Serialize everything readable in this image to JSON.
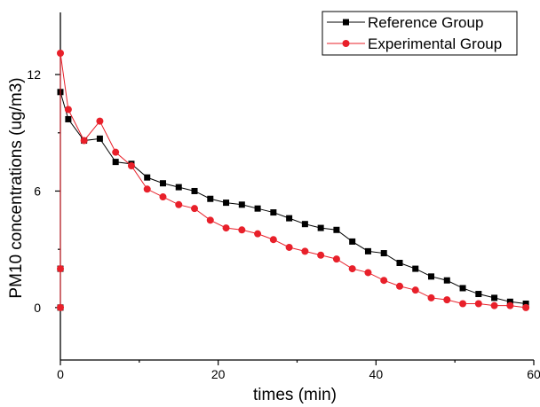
{
  "chart_data": {
    "type": "line",
    "title": "",
    "xlabel": "times (min)",
    "ylabel": "PM10 concentrations (ug/m3)",
    "xlim": [
      0,
      60
    ],
    "ylim": [
      -2.7,
      15.2
    ],
    "xticks": [
      0,
      20,
      40,
      60
    ],
    "xtick_labels": [
      "0",
      "20",
      "40",
      "60"
    ],
    "yticks": [
      0,
      6,
      12
    ],
    "ytick_labels": [
      "0",
      "6",
      "12"
    ],
    "grid": false,
    "legend_position": "top-right",
    "series": [
      {
        "name": "Reference Group",
        "color": "#000000",
        "marker": "square",
        "x": [
          0,
          0,
          0,
          1,
          3,
          5,
          7,
          9,
          11,
          13,
          15,
          17,
          19,
          21,
          23,
          25,
          27,
          29,
          31,
          33,
          35,
          37,
          39,
          41,
          43,
          45,
          47,
          49,
          51,
          53,
          55,
          57,
          59
        ],
        "y": [
          0,
          2,
          11.1,
          9.7,
          8.6,
          8.7,
          7.5,
          7.4,
          6.7,
          6.4,
          6.2,
          6.0,
          5.6,
          5.4,
          5.3,
          5.1,
          4.9,
          4.6,
          4.3,
          4.1,
          4.0,
          3.4,
          2.9,
          2.8,
          2.3,
          2.0,
          1.6,
          1.4,
          1.0,
          0.7,
          0.5,
          0.3,
          0.2
        ]
      },
      {
        "name": "Experimental Group",
        "color": "#e8202a",
        "marker": "circle",
        "x": [
          0,
          0,
          0,
          1,
          3,
          5,
          7,
          9,
          11,
          13,
          15,
          17,
          19,
          21,
          23,
          25,
          27,
          29,
          31,
          33,
          35,
          37,
          39,
          41,
          43,
          45,
          47,
          49,
          51,
          53,
          55,
          57,
          59
        ],
        "y": [
          0,
          2,
          13.1,
          10.2,
          8.6,
          9.6,
          8.0,
          7.3,
          6.1,
          5.7,
          5.3,
          5.1,
          4.5,
          4.1,
          4.0,
          3.8,
          3.5,
          3.1,
          2.9,
          2.7,
          2.5,
          2.0,
          1.8,
          1.4,
          1.1,
          0.9,
          0.5,
          0.4,
          0.2,
          0.2,
          0.1,
          0.1,
          0.0
        ]
      }
    ]
  }
}
